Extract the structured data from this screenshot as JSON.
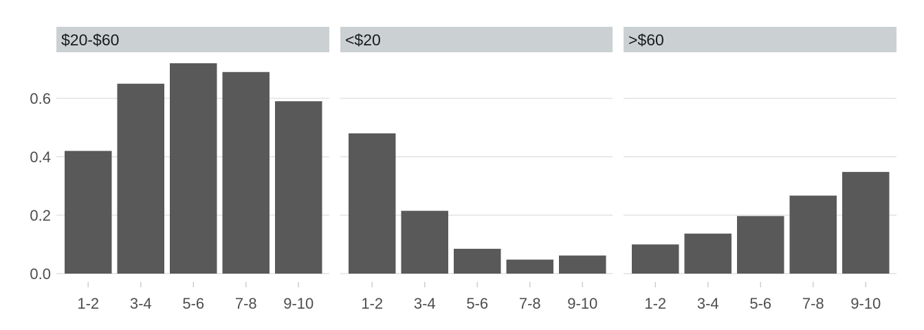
{
  "chart_data": {
    "type": "bar",
    "layout": "facets",
    "categories": [
      "1-2",
      "3-4",
      "5-6",
      "7-8",
      "9-10"
    ],
    "ylim": [
      0,
      0.72
    ],
    "yticks": [
      0.0,
      0.2,
      0.4,
      0.6
    ],
    "ytick_labels": [
      "0.0",
      "0.2",
      "0.4",
      "0.6"
    ],
    "grid": true,
    "bar_color": "#595959",
    "strip_color": "#cbd1d3",
    "facets": [
      {
        "label": "$20-$60",
        "values": [
          0.42,
          0.65,
          0.72,
          0.69,
          0.59
        ]
      },
      {
        "label": "<$20",
        "values": [
          0.48,
          0.215,
          0.085,
          0.048,
          0.062
        ]
      },
      {
        "label": ">$60",
        "values": [
          0.1,
          0.137,
          0.197,
          0.267,
          0.348
        ]
      }
    ]
  }
}
